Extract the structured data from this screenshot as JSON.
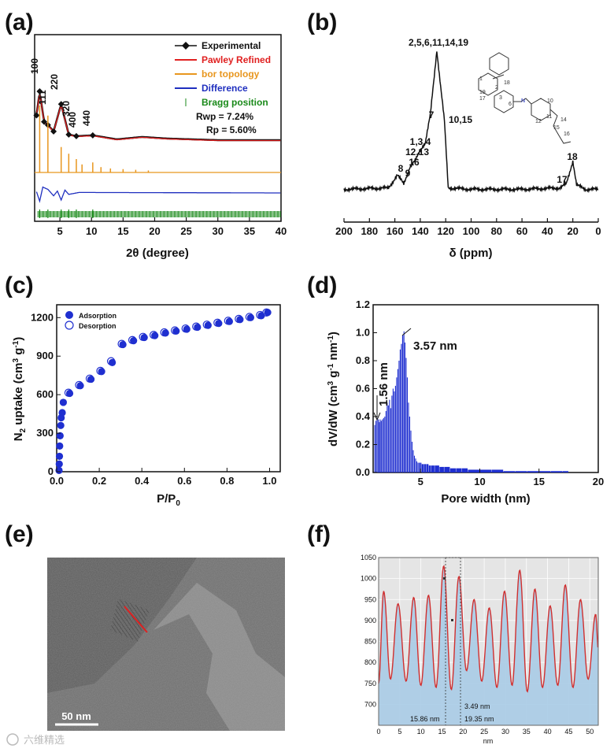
{
  "panel_labels": [
    "(a)",
    "(b)",
    "(c)",
    "(d)",
    "(e)",
    "(f)"
  ],
  "colors": {
    "experimental": "#111111",
    "pawley": "#e02020",
    "bor": "#e8961e",
    "difference": "#1f2fbf",
    "bragg": "#1a8a1a",
    "adsorption": "#1f2fd0",
    "histogram": "#1f2fd0",
    "profile_line": "#d03030",
    "profile_fill": "#a9cbe6",
    "profile_bg": "#e5e5e5"
  },
  "chart_data": [
    {
      "panel": "(a)",
      "type": "line",
      "xlabel": "2θ (degree)",
      "ylabel": "",
      "xlim": [
        1,
        40
      ],
      "xticks": [
        "5",
        "10",
        "15",
        "20",
        "25",
        "30",
        "35",
        "40"
      ],
      "legend": {
        "position": "top-right",
        "entries": [
          "Experimental",
          "Pawley Refined",
          "bor topology",
          "Difference",
          "Bragg position"
        ],
        "stats": [
          "Rwp = 7.24%",
          "Rp = 5.60%"
        ]
      },
      "peak_labels": [
        "100",
        "111",
        "220",
        "320",
        "400",
        "440"
      ],
      "peak_positions": [
        1.8,
        3.1,
        5.2,
        6.4,
        7.6,
        10.2
      ],
      "series": [
        {
          "name": "Experimental",
          "x": [
            1.3,
            1.8,
            2.5,
            3.1,
            4.0,
            5.2,
            6.4,
            7.6,
            10.2,
            14,
            18,
            22,
            26,
            30,
            35,
            40
          ],
          "values": [
            0.7,
            1.0,
            0.62,
            0.58,
            0.5,
            0.84,
            0.46,
            0.44,
            0.45,
            0.4,
            0.43,
            0.41,
            0.4,
            0.39,
            0.39,
            0.39
          ]
        },
        {
          "name": "Pawley Refined",
          "x": [
            1.3,
            1.8,
            2.5,
            3.1,
            4.0,
            5.2,
            6.4,
            7.6,
            10.2,
            14,
            18,
            22,
            26,
            30,
            35,
            40
          ],
          "values": [
            0.7,
            1.0,
            0.62,
            0.58,
            0.5,
            0.84,
            0.46,
            0.44,
            0.45,
            0.4,
            0.43,
            0.41,
            0.4,
            0.39,
            0.39,
            0.39
          ]
        },
        {
          "name": "bor topology",
          "x": [
            1.8,
            3.1,
            5.2,
            6.4,
            7.6,
            8.5,
            10.2,
            11.5,
            13,
            15,
            17,
            19
          ],
          "values": [
            1.0,
            0.85,
            0.38,
            0.28,
            0.2,
            0.12,
            0.15,
            0.08,
            0.06,
            0.05,
            0.04,
            0.03
          ]
        },
        {
          "name": "Difference",
          "x": [
            1.3,
            1.8,
            2.3,
            3.1,
            4.0,
            4.6,
            5.2,
            5.8,
            6.4,
            8,
            40
          ],
          "values": [
            0.05,
            -0.35,
            0.25,
            0.15,
            -0.12,
            0.08,
            -0.3,
            0.12,
            -0.06,
            0.02,
            0.0
          ]
        },
        {
          "name": "Bragg position",
          "x": [
            1.8,
            3.1,
            5.2,
            6.4,
            7.6,
            10.2
          ],
          "values": [
            1,
            1,
            1,
            1,
            1,
            1
          ]
        }
      ]
    },
    {
      "panel": "(b)",
      "type": "line",
      "xlabel": "δ (ppm)",
      "ylabel": "",
      "xlim": [
        200,
        0
      ],
      "xticks": [
        "200",
        "180",
        "160",
        "140",
        "120",
        "100",
        "80",
        "60",
        "40",
        "20",
        "0"
      ],
      "peak_labels": [
        "2,5,6,11,14,19",
        "7",
        "10,15",
        "1,3,4",
        "12,13",
        "16",
        "8",
        "9",
        "18",
        "17"
      ],
      "series": [
        {
          "name": "",
          "x": [
            200,
            165,
            158,
            153,
            148,
            144,
            140,
            136,
            132,
            127,
            121,
            118,
            100,
            60,
            30,
            25,
            20,
            17,
            10,
            0
          ],
          "values": [
            0.02,
            0.03,
            0.12,
            0.06,
            0.18,
            0.22,
            0.3,
            0.35,
            0.55,
            1.0,
            0.5,
            0.03,
            0.02,
            0.02,
            0.03,
            0.06,
            0.22,
            0.05,
            0.02,
            0.02
          ]
        }
      ]
    },
    {
      "panel": "(c)",
      "type": "scatter",
      "xlabel": "P/P0",
      "ylabel": "N2 uptake (cm3 g-1)",
      "xlim": [
        0,
        1.05
      ],
      "ylim": [
        0,
        1300
      ],
      "xticks": [
        "0.0",
        "0.2",
        "0.4",
        "0.6",
        "0.8",
        "1.0"
      ],
      "yticks": [
        "0",
        "300",
        "600",
        "900",
        "1200"
      ],
      "legend": {
        "position": "top-left",
        "entries": [
          "Adsorption",
          "Desorption"
        ]
      },
      "series": [
        {
          "name": "Adsorption",
          "x": [
            0.0,
            0.001,
            0.002,
            0.003,
            0.005,
            0.008,
            0.01,
            0.015,
            0.02,
            0.05,
            0.1,
            0.15,
            0.2,
            0.25,
            0.3,
            0.35,
            0.4,
            0.45,
            0.5,
            0.55,
            0.6,
            0.65,
            0.7,
            0.75,
            0.8,
            0.85,
            0.9,
            0.95,
            0.98
          ],
          "values": [
            10,
            60,
            120,
            200,
            280,
            360,
            420,
            460,
            540,
            610,
            670,
            720,
            780,
            850,
            990,
            1020,
            1045,
            1060,
            1080,
            1095,
            1110,
            1125,
            1140,
            1155,
            1170,
            1185,
            1200,
            1215,
            1240
          ]
        },
        {
          "name": "Desorption",
          "x": [
            0.05,
            0.1,
            0.15,
            0.2,
            0.25,
            0.3,
            0.35,
            0.4,
            0.45,
            0.5,
            0.55,
            0.6,
            0.65,
            0.7,
            0.75,
            0.8,
            0.85,
            0.9,
            0.95,
            0.98
          ],
          "values": [
            615,
            675,
            725,
            785,
            860,
            995,
            1025,
            1050,
            1065,
            1085,
            1100,
            1115,
            1130,
            1145,
            1160,
            1175,
            1190,
            1205,
            1220,
            1240
          ]
        }
      ]
    },
    {
      "panel": "(d)",
      "type": "bar",
      "xlabel": "Pore width (nm)",
      "ylabel": "dV/dW (cm3 g-1 nm-1)",
      "xlim": [
        1,
        20
      ],
      "ylim": [
        0,
        1.2
      ],
      "xticks": [
        "5",
        "10",
        "15",
        "20"
      ],
      "yticks": [
        "0.0",
        "0.2",
        "0.4",
        "0.6",
        "0.8",
        "1.0",
        "1.2"
      ],
      "annotations": [
        "1.56 nm",
        "3.57 nm"
      ],
      "x": [
        1.1,
        1.2,
        1.3,
        1.4,
        1.5,
        1.56,
        1.65,
        1.75,
        1.85,
        1.95,
        2.05,
        2.15,
        2.25,
        2.35,
        2.45,
        2.55,
        2.65,
        2.75,
        2.85,
        2.95,
        3.05,
        3.15,
        3.25,
        3.35,
        3.45,
        3.57,
        3.65,
        3.75,
        3.85,
        3.95,
        4.05,
        4.15,
        4.25,
        4.35,
        4.45,
        4.55,
        4.65,
        4.75,
        4.85,
        4.95,
        5.1,
        5.3,
        5.5,
        5.7,
        5.9,
        6.2,
        6.6,
        7.0,
        7.5,
        8.0,
        8.5,
        9.0,
        10,
        11,
        12,
        13,
        14,
        15,
        16,
        17
      ],
      "values": [
        0.34,
        0.37,
        0.39,
        0.38,
        0.36,
        0.38,
        0.37,
        0.38,
        0.39,
        0.4,
        0.44,
        0.5,
        0.48,
        0.52,
        0.46,
        0.55,
        0.6,
        0.58,
        0.62,
        0.68,
        0.74,
        0.8,
        0.88,
        0.92,
        0.98,
        1.01,
        0.93,
        0.82,
        0.68,
        0.5,
        0.4,
        0.3,
        0.22,
        0.16,
        0.12,
        0.1,
        0.08,
        0.07,
        0.07,
        0.07,
        0.06,
        0.06,
        0.06,
        0.05,
        0.05,
        0.05,
        0.04,
        0.04,
        0.03,
        0.03,
        0.03,
        0.02,
        0.02,
        0.02,
        0.01,
        0.01,
        0.01,
        0.01,
        0.01,
        0.01
      ]
    },
    {
      "panel": "(f)",
      "type": "area",
      "xlabel": "nm",
      "ylabel": "",
      "xlim": [
        0,
        52
      ],
      "ylim": [
        650,
        1050
      ],
      "xticks": [
        "0",
        "5",
        "10",
        "15",
        "20",
        "25",
        "30",
        "35",
        "40",
        "45",
        "50"
      ],
      "yticks": [
        "700",
        "750",
        "800",
        "850",
        "900",
        "950",
        "1000",
        "1050"
      ],
      "annotations": [
        "3.49 nm",
        "15.86 nm",
        "19.35 nm"
      ],
      "x": [
        0,
        1.2,
        2.8,
        4.6,
        6.5,
        8.3,
        10.0,
        11.8,
        13.6,
        15.4,
        17.2,
        19.0,
        20.8,
        22.6,
        24.4,
        26.2,
        28.0,
        29.8,
        31.6,
        33.4,
        35.2,
        37.0,
        38.8,
        40.6,
        42.4,
        44.2,
        46.0,
        47.8,
        49.6,
        51.4,
        52
      ],
      "values": [
        750,
        970,
        760,
        940,
        755,
        955,
        745,
        960,
        740,
        1030,
        735,
        1005,
        780,
        950,
        755,
        930,
        740,
        970,
        745,
        1020,
        730,
        975,
        740,
        935,
        745,
        985,
        740,
        950,
        760,
        915,
        830
      ]
    }
  ],
  "micrograph": {
    "scale_bar": "50 nm"
  },
  "watermark": "六维精选"
}
